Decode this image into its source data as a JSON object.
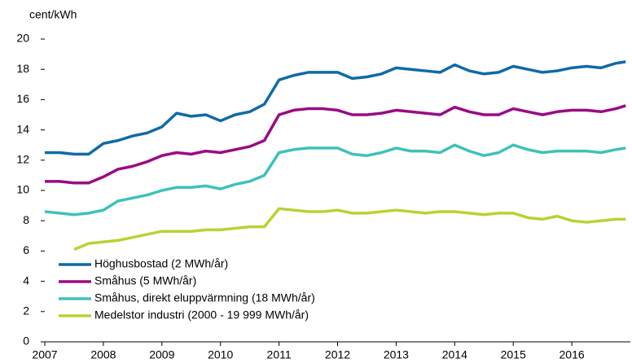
{
  "chart_data": {
    "type": "line",
    "ylabel": "cent/kWh",
    "x": [
      2007,
      2007.25,
      2007.5,
      2007.75,
      2008,
      2008.25,
      2008.5,
      2008.75,
      2009,
      2009.25,
      2009.5,
      2009.75,
      2010,
      2010.25,
      2010.5,
      2010.75,
      2011,
      2011.25,
      2011.5,
      2011.75,
      2012,
      2012.25,
      2012.5,
      2012.75,
      2013,
      2013.25,
      2013.5,
      2013.75,
      2014,
      2014.25,
      2014.5,
      2014.75,
      2015,
      2015.25,
      2015.5,
      2015.75,
      2016,
      2016.25,
      2016.5,
      2016.75,
      2016.92
    ],
    "series": [
      {
        "name": "Höghusbostad (2 MWh/år)",
        "color": "#0f6aa8",
        "values": [
          12.5,
          12.5,
          12.4,
          12.4,
          13.1,
          13.3,
          13.6,
          13.8,
          14.2,
          15.1,
          14.9,
          15.0,
          14.6,
          15.0,
          15.2,
          15.7,
          17.3,
          17.6,
          17.8,
          17.8,
          17.8,
          17.4,
          17.5,
          17.7,
          18.1,
          18.0,
          17.9,
          17.8,
          18.3,
          17.9,
          17.7,
          17.8,
          18.2,
          18.0,
          17.8,
          17.9,
          18.1,
          18.2,
          18.1,
          18.4,
          18.5
        ]
      },
      {
        "name": "Småhus (5 MWh/år)",
        "color": "#9a0b85",
        "values": [
          10.6,
          10.6,
          10.5,
          10.5,
          10.9,
          11.4,
          11.6,
          11.9,
          12.3,
          12.5,
          12.4,
          12.6,
          12.5,
          12.7,
          12.9,
          13.3,
          15.0,
          15.3,
          15.4,
          15.4,
          15.3,
          15.0,
          15.0,
          15.1,
          15.3,
          15.2,
          15.1,
          15.0,
          15.5,
          15.2,
          15.0,
          15.0,
          15.4,
          15.2,
          15.0,
          15.2,
          15.3,
          15.3,
          15.2,
          15.4,
          15.6
        ]
      },
      {
        "name": "Småhus, direkt eluppvärmning (18 MWh/år)",
        "color": "#3fc1bb",
        "values": [
          8.6,
          8.5,
          8.4,
          8.5,
          8.7,
          9.3,
          9.5,
          9.7,
          10.0,
          10.2,
          10.2,
          10.3,
          10.1,
          10.4,
          10.6,
          11.0,
          12.5,
          12.7,
          12.8,
          12.8,
          12.8,
          12.4,
          12.3,
          12.5,
          12.8,
          12.6,
          12.6,
          12.5,
          13.0,
          12.6,
          12.3,
          12.5,
          13.0,
          12.7,
          12.5,
          12.6,
          12.6,
          12.6,
          12.5,
          12.7,
          12.8
        ]
      },
      {
        "name": "Medelstor industri (2000 - 19 999 MWh/år)",
        "color": "#b6d433",
        "values": [
          null,
          null,
          6.1,
          6.5,
          6.6,
          6.7,
          6.9,
          7.1,
          7.3,
          7.3,
          7.3,
          7.4,
          7.4,
          7.5,
          7.6,
          7.6,
          8.8,
          8.7,
          8.6,
          8.6,
          8.7,
          8.5,
          8.5,
          8.6,
          8.7,
          8.6,
          8.5,
          8.6,
          8.6,
          8.5,
          8.4,
          8.5,
          8.5,
          8.2,
          8.1,
          8.3,
          8.0,
          7.9,
          8.0,
          8.1,
          8.1
        ]
      }
    ],
    "xlim": [
      2007,
      2017
    ],
    "xticks": [
      2007,
      2008,
      2009,
      2010,
      2011,
      2012,
      2013,
      2014,
      2015,
      2016
    ],
    "ylim": [
      0,
      20
    ],
    "yticks": [
      0,
      2,
      4,
      6,
      8,
      10,
      12,
      14,
      16,
      18,
      20
    ],
    "legend": "lower left"
  }
}
